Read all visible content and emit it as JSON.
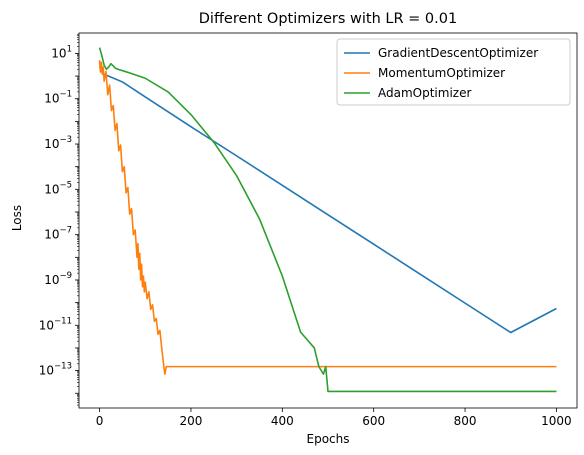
{
  "chart_data": {
    "type": "line",
    "title": "Different Optimizers with LR = 0.01",
    "xlabel": "Epochs",
    "ylabel": "Loss",
    "xscale": "linear",
    "yscale": "log",
    "xlim": [
      -45,
      1045
    ],
    "ylim_exponent": [
      -14.65,
      1.9
    ],
    "x_ticks": [
      0,
      200,
      400,
      600,
      800,
      1000
    ],
    "x_tick_labels": [
      "0",
      "200",
      "400",
      "600",
      "800",
      "1000"
    ],
    "y_tick_exponents": [
      1,
      -1,
      -3,
      -5,
      -7,
      -9,
      -11,
      -13
    ],
    "y_tick_labels": [
      {
        "base": "10",
        "exp": "1"
      },
      {
        "base": "10",
        "exp": "−1"
      },
      {
        "base": "10",
        "exp": "−3"
      },
      {
        "base": "10",
        "exp": "−5"
      },
      {
        "base": "10",
        "exp": "−7"
      },
      {
        "base": "10",
        "exp": "−9"
      },
      {
        "base": "10",
        "exp": "−11"
      },
      {
        "base": "10",
        "exp": "−13"
      }
    ],
    "grid": false,
    "legend": "top-right",
    "series": [
      {
        "name": "GradientDescentOptimizer",
        "color": "#1f77b4",
        "points": [
          [
            0,
            2.6
          ],
          [
            10,
            1.2
          ],
          [
            50,
            0.55
          ],
          [
            100,
            0.12
          ],
          [
            200,
            0.0058
          ],
          [
            300,
            0.0003
          ],
          [
            400,
            1.5e-05
          ],
          [
            500,
            7.5e-07
          ],
          [
            600,
            3.8e-08
          ],
          [
            700,
            1.9e-09
          ],
          [
            800,
            9.5e-11
          ],
          [
            900,
            4.8e-12
          ],
          [
            1000,
            5.5e-11
          ]
        ]
      },
      {
        "name": "MomentumOptimizer",
        "color": "#ff7f0e",
        "points": [
          [
            0,
            5.0
          ],
          [
            2,
            1.5
          ],
          [
            4,
            4.0
          ],
          [
            6,
            1.2
          ],
          [
            8,
            2.5
          ],
          [
            10,
            0.6
          ],
          [
            14,
            1.6
          ],
          [
            18,
            0.15
          ],
          [
            22,
            0.4
          ],
          [
            26,
            0.03
          ],
          [
            30,
            0.05
          ],
          [
            34,
            0.004
          ],
          [
            38,
            0.008
          ],
          [
            42,
            0.0005
          ],
          [
            46,
            0.0009
          ],
          [
            50,
            6e-05
          ],
          [
            54,
            0.0001
          ],
          [
            58,
            7e-06
          ],
          [
            62,
            1.2e-05
          ],
          [
            66,
            8e-07
          ],
          [
            70,
            1.4e-06
          ],
          [
            74,
            1e-07
          ],
          [
            78,
            1.6e-07
          ],
          [
            82,
            1e-08
          ],
          [
            84,
            4e-08
          ],
          [
            86,
            3e-09
          ],
          [
            88,
            1.5e-08
          ],
          [
            90,
            1e-09
          ],
          [
            92,
            5e-09
          ],
          [
            94,
            5e-10
          ],
          [
            96,
            1.5e-09
          ],
          [
            98,
            3e-10
          ],
          [
            100,
            8e-10
          ],
          [
            104,
            1.5e-10
          ],
          [
            108,
            3e-10
          ],
          [
            112,
            5e-11
          ],
          [
            116,
            8e-11
          ],
          [
            120,
            1.5e-11
          ],
          [
            124,
            2e-11
          ],
          [
            128,
            4e-12
          ],
          [
            132,
            6e-12
          ],
          [
            136,
            1e-12
          ],
          [
            140,
            2e-13
          ],
          [
            143,
            7e-14
          ],
          [
            146,
            1.5e-13
          ],
          [
            200,
            1.5e-13
          ],
          [
            300,
            1.5e-13
          ],
          [
            400,
            1.5e-13
          ],
          [
            500,
            1.5e-13
          ],
          [
            600,
            1.5e-13
          ],
          [
            700,
            1.5e-13
          ],
          [
            800,
            1.5e-13
          ],
          [
            900,
            1.5e-13
          ],
          [
            1000,
            1.5e-13
          ]
        ]
      },
      {
        "name": "AdamOptimizer",
        "color": "#2ca02c",
        "points": [
          [
            0,
            18
          ],
          [
            5,
            8
          ],
          [
            10,
            3
          ],
          [
            15,
            2
          ],
          [
            20,
            2.5
          ],
          [
            25,
            3.5
          ],
          [
            30,
            2.8
          ],
          [
            35,
            2.2
          ],
          [
            40,
            2.0
          ],
          [
            60,
            1.5
          ],
          [
            100,
            0.8
          ],
          [
            150,
            0.2
          ],
          [
            200,
            0.02
          ],
          [
            250,
            0.0012
          ],
          [
            300,
            4e-05
          ],
          [
            350,
            5e-07
          ],
          [
            400,
            1.5e-09
          ],
          [
            440,
            5e-12
          ],
          [
            470,
            1e-12
          ],
          [
            480,
            1.5e-13
          ],
          [
            490,
            7e-14
          ],
          [
            495,
            1.5e-13
          ],
          [
            500,
            1.2e-14
          ],
          [
            600,
            1.2e-14
          ],
          [
            700,
            1.2e-14
          ],
          [
            800,
            1.2e-14
          ],
          [
            900,
            1.2e-14
          ],
          [
            1000,
            1.2e-14
          ]
        ]
      }
    ]
  }
}
